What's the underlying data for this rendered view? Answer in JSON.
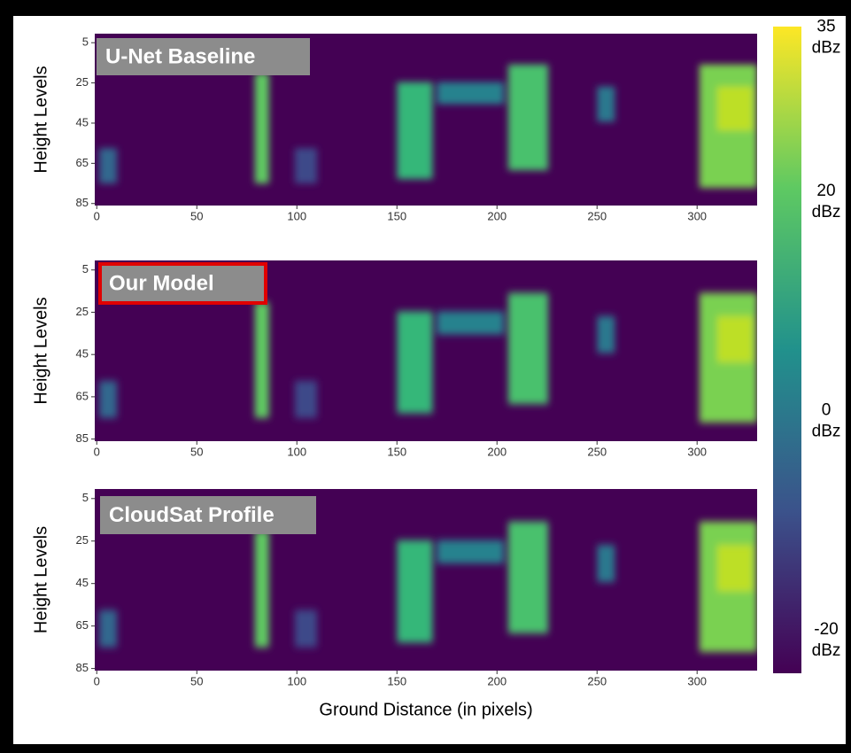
{
  "chart_data": [
    {
      "type": "heatmap",
      "title": "U-Net Baseline",
      "ylabel": "Height Levels",
      "xlim": [
        -1,
        330
      ],
      "xticks": [
        0,
        50,
        100,
        150,
        200,
        250,
        300
      ],
      "ylim": [
        86,
        0.5
      ],
      "yticks": [
        5,
        25,
        45,
        65,
        85
      ]
    },
    {
      "type": "heatmap",
      "title": "Our Model",
      "ylabel": "Height Levels",
      "xlim": [
        -1,
        330
      ],
      "xticks": [
        0,
        50,
        100,
        150,
        200,
        250,
        300
      ],
      "ylim": [
        86,
        0.5
      ],
      "yticks": [
        5,
        25,
        45,
        65,
        85
      ]
    },
    {
      "type": "heatmap",
      "title": "CloudSat Profile",
      "ylabel": "Height Levels",
      "xlabel": "Ground Distance (in pixels)",
      "xlim": [
        -1,
        330
      ],
      "xticks": [
        0,
        50,
        100,
        150,
        200,
        250,
        300
      ],
      "ylim": [
        86,
        0.5
      ],
      "yticks": [
        5,
        25,
        45,
        65,
        85
      ]
    }
  ],
  "colorbar": {
    "ylim": [
      -23,
      36
    ],
    "yticks": [
      {
        "value": 35,
        "label": "35 dBz"
      },
      {
        "value": 20,
        "label": "20 dBz"
      },
      {
        "value": 0,
        "label": "0 dBz"
      },
      {
        "value": -20,
        "label": "-20 dBz"
      }
    ]
  }
}
